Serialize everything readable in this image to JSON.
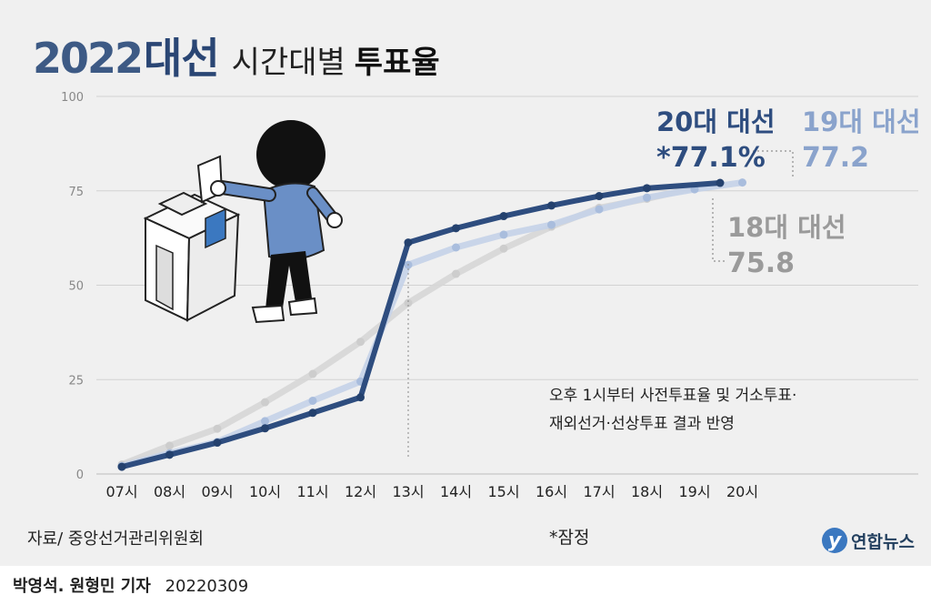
{
  "title": {
    "year": "2022",
    "election": "대선",
    "middle": "시간대별",
    "bold": "투표율"
  },
  "source": "자료/ 중앙선거관리위원회",
  "tentative_note": "*잠정",
  "logo": {
    "mark": "y",
    "text": "연합뉴스"
  },
  "credit": {
    "reporters": "박영석. 원형민 기자",
    "date": "20220309"
  },
  "annotation": [
    "오후 1시부터 사전투표율 및 거소투표·",
    "재외선거·선상투표 결과 반영"
  ],
  "labels": {
    "s20_name": "20대 대선",
    "s20_value": "*77.1%",
    "s19_name": "19대 대선",
    "s19_value": "77.2",
    "s18_name": "18대 대선",
    "s18_value": "75.8"
  },
  "colors": {
    "s20": "#2e4d7f",
    "s19": "#c4d2e8",
    "s18": "#d6d6d6",
    "s19_label": "#8aa3cc",
    "s18_label": "#9a9a9a"
  },
  "chart_data": {
    "type": "line",
    "categories": [
      "07시",
      "08시",
      "09시",
      "10시",
      "11시",
      "12시",
      "13시",
      "14시",
      "15시",
      "16시",
      "17시",
      "18시",
      "19시",
      "20시"
    ],
    "ylim": [
      0,
      100
    ],
    "yticks": [
      0,
      25,
      50,
      75,
      100
    ],
    "grid": true,
    "series": [
      {
        "name": "18대 대선",
        "key": "s18",
        "x": [
          "07시",
          "08시",
          "09시",
          "10시",
          "11시",
          "12시",
          "13시",
          "14시",
          "15시",
          "16시",
          "17시",
          "18시",
          "19시"
        ],
        "values": [
          2.5,
          7.5,
          12,
          19,
          26.5,
          35,
          45.3,
          53,
          59.7,
          65.5,
          70.5,
          72.9,
          75.8
        ]
      },
      {
        "name": "19대 대선",
        "key": "s19",
        "x": [
          "07시",
          "08시",
          "09시",
          "10시",
          "11시",
          "12시",
          "13시",
          "14시",
          "15시",
          "16시",
          "17시",
          "18시",
          "19시",
          "20시"
        ],
        "values": [
          2.1,
          5.5,
          8.5,
          14,
          19.4,
          24.5,
          55.4,
          60,
          63.4,
          66,
          70.1,
          73.2,
          75.4,
          77.2
        ]
      },
      {
        "name": "20대 대선",
        "key": "s20",
        "x": [
          "07시",
          "08시",
          "09시",
          "10시",
          "11시",
          "12시",
          "13시",
          "14시",
          "15시",
          "16시",
          "17시",
          "18시",
          "19시"
        ],
        "values": [
          1.9,
          5.1,
          8.3,
          12.1,
          16.2,
          20.3,
          61.3,
          65.1,
          68.3,
          71.1,
          73.6,
          75.7,
          77.1
        ]
      }
    ]
  }
}
